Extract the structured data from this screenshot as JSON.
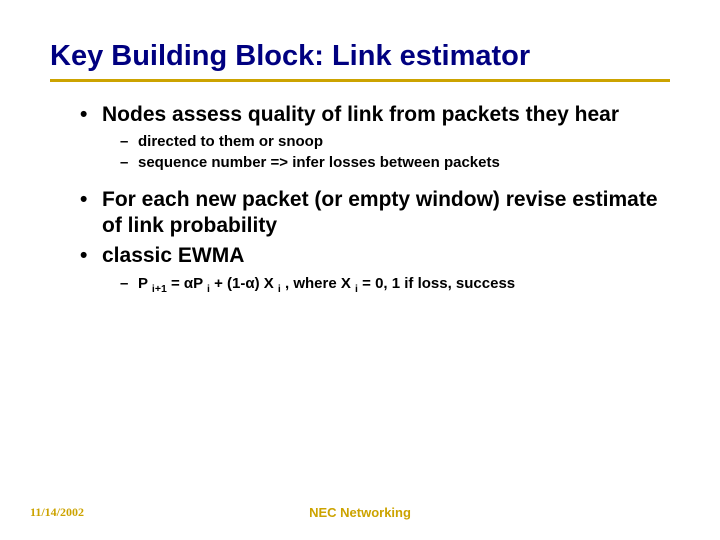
{
  "title": "Key Building Block: Link estimator",
  "bullets": {
    "b1": "Nodes assess quality of link from packets they hear",
    "b1_sub1": "directed to them or snoop",
    "b1_sub2": "sequence number => infer losses between packets",
    "b2": "For each new packet (or empty window) revise estimate of link probability",
    "b3": "classic EWMA",
    "b3_sub1_html": "P <sub class='s'>i+1</sub> = αP <sub class='s'>i</sub> + (1-α) X <sub class='s'>i</sub> , where X <sub class='s'>i</sub> = 0, 1 if loss, success"
  },
  "footer": {
    "date": "11/14/2002",
    "org": "NEC Networking"
  },
  "colors": {
    "title": "#000080",
    "underline": "#cca300",
    "footer_text": "#cca300",
    "body_text": "#000000",
    "background": "#ffffff"
  },
  "fonts": {
    "title_size": 29,
    "l1_size": 21,
    "l2_size": 15,
    "footer_size": 12
  }
}
